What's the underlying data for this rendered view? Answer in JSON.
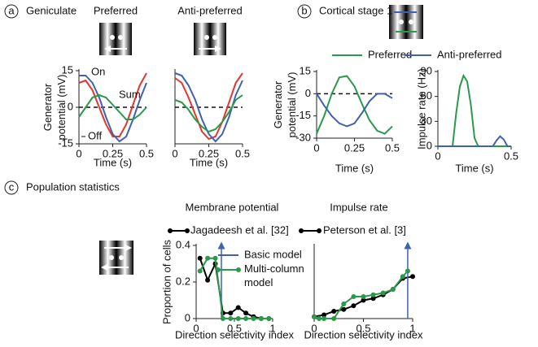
{
  "panels": [
    {
      "label": "a",
      "title": "Geniculate"
    },
    {
      "label": "b",
      "title": "Cortical stage 1"
    },
    {
      "label": "c",
      "title": "Population statistics"
    }
  ],
  "chart_data": [
    {
      "type": "line",
      "title": "Preferred",
      "xlabel": "Time (s)",
      "ylabel": "Generator potential (mV)",
      "x": [
        0,
        0.05,
        0.1,
        0.15,
        0.2,
        0.25,
        0.3,
        0.35,
        0.4,
        0.45,
        0.5
      ],
      "xlim": [
        0,
        0.5
      ],
      "xticks": [
        0,
        0.25,
        0.5
      ],
      "ylim": [
        -15,
        15
      ],
      "yticks": [
        -15,
        0,
        15
      ],
      "hline": 0,
      "series": [
        {
          "name": "On",
          "color": "#e8342c",
          "values": [
            10,
            11,
            7,
            0,
            -7,
            -12,
            -12,
            -7,
            1,
            9,
            14
          ]
        },
        {
          "name": "Off",
          "color": "#4060b0",
          "values": [
            13,
            13,
            10,
            4,
            -4,
            -11,
            -14,
            -12,
            -5,
            3,
            10
          ]
        },
        {
          "name": "Sum",
          "color": "#2a9a4a",
          "values": [
            -4,
            0,
            4,
            5,
            4,
            1,
            -2,
            -5,
            -5,
            -3,
            0
          ]
        }
      ]
    },
    {
      "type": "line",
      "title": "Anti-preferred",
      "xlabel": "Time (s)",
      "x": [
        0,
        0.05,
        0.1,
        0.15,
        0.2,
        0.25,
        0.3,
        0.35,
        0.4,
        0.45,
        0.5
      ],
      "xlim": [
        0,
        0.5
      ],
      "xticks": [
        0,
        0.25,
        0.5
      ],
      "ylim": [
        -15,
        15
      ],
      "hline": 0,
      "series": [
        {
          "color": "#e8342c",
          "values": [
            12,
            10,
            4,
            -3,
            -10,
            -13,
            -12,
            -6,
            2,
            10,
            14
          ]
        },
        {
          "color": "#4060b0",
          "values": [
            14,
            13,
            9,
            3,
            -5,
            -11,
            -14,
            -11,
            -4,
            5,
            11
          ]
        },
        {
          "color": "#2a9a4a",
          "values": [
            3,
            2,
            -1,
            -5,
            -8,
            -10,
            -9,
            -6,
            -2,
            3,
            5
          ]
        }
      ]
    },
    {
      "type": "line",
      "xlabel": "Time (s)",
      "ylabel": "Generator potential (mV)",
      "x": [
        0,
        0.05,
        0.1,
        0.15,
        0.2,
        0.25,
        0.3,
        0.35,
        0.4,
        0.45,
        0.5
      ],
      "xlim": [
        0,
        0.5
      ],
      "xticks": [
        0,
        0.25,
        0.5
      ],
      "ylim": [
        -30,
        15
      ],
      "yticks": [
        -30,
        -15,
        0,
        15
      ],
      "hline": 0,
      "series": [
        {
          "name": "Preferred",
          "color": "#2a9a4a",
          "values": [
            -27,
            -15,
            0,
            11,
            12,
            5,
            -7,
            -18,
            -25,
            -27,
            -22
          ]
        },
        {
          "name": "Anti-preferred",
          "color": "#4060b0",
          "values": [
            0,
            -8,
            -15,
            -20,
            -22,
            -20,
            -13,
            -5,
            0,
            0,
            -3
          ]
        }
      ]
    },
    {
      "type": "line",
      "xlabel": "Time (s)",
      "ylabel": "Impulse rate (Hz)",
      "x": [
        0,
        0.025,
        0.05,
        0.075,
        0.1,
        0.125,
        0.15,
        0.175,
        0.2,
        0.225,
        0.25,
        0.275,
        0.3,
        0.325,
        0.35,
        0.375,
        0.4,
        0.425,
        0.45,
        0.475,
        0.5
      ],
      "xlim": [
        0,
        0.5
      ],
      "xticks": [
        0,
        0.5
      ],
      "ylim": [
        0,
        90
      ],
      "yticks": [
        0,
        30,
        60,
        90
      ],
      "series": [
        {
          "color": "#2a9a4a",
          "values": [
            0,
            0,
            0,
            0,
            0,
            40,
            72,
            85,
            78,
            50,
            10,
            0,
            0,
            0,
            0,
            0,
            0,
            0,
            0,
            0,
            0
          ]
        },
        {
          "color": "#4060b0",
          "values": [
            0,
            0,
            0,
            0,
            0,
            0,
            0,
            0,
            0,
            0,
            0,
            0,
            0,
            0,
            0,
            0,
            7,
            12,
            8,
            0,
            0
          ]
        }
      ]
    },
    {
      "type": "line",
      "title": "Membrane potential",
      "xlabel": "Direction selectivity index",
      "ylabel": "Proportion of cells",
      "xlim": [
        0,
        1
      ],
      "xticks": [
        0,
        0.5,
        1
      ],
      "ylim": [
        0,
        0.4
      ],
      "yticks": [
        0,
        0.2,
        0.4
      ],
      "series": [
        {
          "name": "Jagadeesh et al. [32]",
          "color": "#000000",
          "marker": true,
          "x": [
            0.05,
            0.15,
            0.25,
            0.35,
            0.45,
            0.55,
            0.65,
            0.75,
            0.85,
            0.95
          ],
          "values": [
            0.33,
            0.21,
            0.3,
            0.03,
            0.03,
            0.06,
            0.03,
            0.01,
            0,
            0
          ]
        },
        {
          "name": "Basic model",
          "color": "#4060b0",
          "arrow": true,
          "x": [
            0.33,
            0.33
          ],
          "values": [
            0,
            0.4
          ]
        },
        {
          "name": "Multi-column model",
          "color": "#2a9a4a",
          "marker": true,
          "x": [
            0.05,
            0.15,
            0.25,
            0.35,
            0.45,
            0.55,
            0.65,
            0.75,
            0.85,
            0.95
          ],
          "values": [
            0.26,
            0.33,
            0.33,
            0,
            0,
            0,
            0,
            0,
            0,
            0
          ]
        }
      ]
    },
    {
      "type": "line",
      "title": "Impulse rate",
      "xlabel": "Direction selectivity index",
      "xlim": [
        0,
        1
      ],
      "xticks": [
        0,
        0.5,
        1
      ],
      "ylim": [
        0,
        0.4
      ],
      "series": [
        {
          "name": "Peterson et al. [3]",
          "color": "#000000",
          "marker": true,
          "x": [
            0,
            0.1,
            0.2,
            0.3,
            0.4,
            0.5,
            0.6,
            0.7,
            0.8,
            0.9,
            1
          ],
          "values": [
            0.01,
            0.02,
            0.04,
            0.05,
            0.07,
            0.1,
            0.11,
            0.13,
            0.16,
            0.22,
            0.23
          ]
        },
        {
          "color": "#4060b0",
          "arrow": true,
          "x": [
            0.95,
            0.95
          ],
          "values": [
            0,
            0.4
          ]
        },
        {
          "color": "#2a9a4a",
          "marker": true,
          "x": [
            0,
            0.05,
            0.1,
            0.2,
            0.3,
            0.4,
            0.5,
            0.6,
            0.7,
            0.8,
            0.9,
            0.95
          ],
          "values": [
            0.01,
            0,
            0,
            0,
            0.08,
            0.12,
            0.12,
            0.13,
            0.14,
            0.16,
            0.23,
            0.26
          ]
        }
      ]
    }
  ]
}
